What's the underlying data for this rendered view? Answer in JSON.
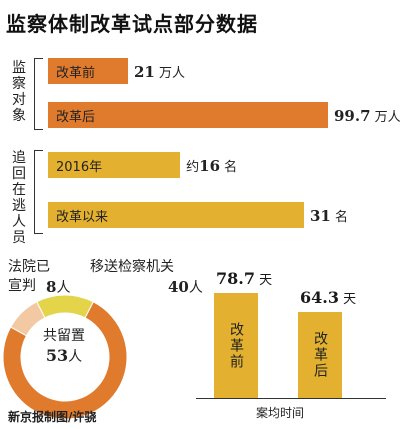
{
  "title": "监察体制改革试点部分数据",
  "chart_data": [
    {
      "type": "bar",
      "orientation": "horizontal",
      "group_label": "监察对象",
      "categories": [
        "改革前",
        "改革后"
      ],
      "values": [
        21,
        99.7
      ],
      "value_labels": [
        "21",
        "99.7"
      ],
      "unit": "万人",
      "color": "#e07b2e"
    },
    {
      "type": "bar",
      "orientation": "horizontal",
      "group_label": "追回在逃人员",
      "categories": [
        "2016年",
        "改革以来"
      ],
      "values": [
        16,
        31
      ],
      "value_labels": [
        "16",
        "31"
      ],
      "value_prefixes": [
        "约",
        ""
      ],
      "unit": "名",
      "color": "#e3b12f"
    },
    {
      "type": "pie",
      "style": "donut",
      "center_label": "共留置",
      "total": 53,
      "total_unit": "人",
      "slices": [
        {
          "label": "法院已宣判",
          "value": 8,
          "unit": "人",
          "color": "#e3d44a"
        },
        {
          "label": "移送检察机关",
          "value": 40,
          "unit": "人",
          "color": "#e07b2e"
        },
        {
          "label": "",
          "value": 5,
          "color": "#f3c9a3"
        }
      ]
    },
    {
      "type": "bar",
      "orientation": "vertical",
      "categories": [
        "改革前",
        "改革后"
      ],
      "values": [
        78.7,
        64.3
      ],
      "value_labels": [
        "78.7",
        "64.3"
      ],
      "unit": "天",
      "xlabel": "案均时间",
      "color": "#e3b12f"
    }
  ],
  "credit": "新京报制图/许骁"
}
